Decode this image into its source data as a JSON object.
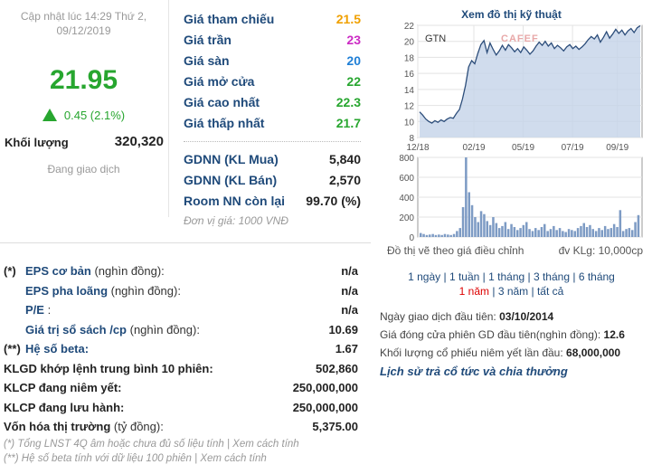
{
  "quote": {
    "update_time_line1": "Cập nhật lúc 14:29 Thứ 2,",
    "update_time_line2": "09/12/2019",
    "price": "21.95",
    "change": "0.45 (2.1%)",
    "volume_label": "Khối lượng",
    "volume_value": "320,320",
    "status": "Đang giao dịch",
    "up_color": "#27a62f"
  },
  "price_table": {
    "rows": [
      {
        "label": "Giá tham chiếu",
        "value": "21.5",
        "color": "#f0a000"
      },
      {
        "label": "Giá trần",
        "value": "23",
        "color": "#cc2bc4"
      },
      {
        "label": "Giá sàn",
        "value": "20",
        "color": "#1f7fd6"
      },
      {
        "label": "Giá mở cửa",
        "value": "22",
        "color": "#27a62f"
      },
      {
        "label": "Giá cao nhất",
        "value": "22.3",
        "color": "#27a62f"
      },
      {
        "label": "Giá thấp nhất",
        "value": "21.7",
        "color": "#27a62f"
      }
    ],
    "foreign": [
      {
        "label": "GDNN (KL Mua)",
        "value": "5,840"
      },
      {
        "label": "GDNN (KL Bán)",
        "value": "2,570"
      },
      {
        "label": "Room NN còn lại",
        "value": "99.70 (%)"
      }
    ],
    "unit_note": "Đơn vị giá: 1000 VNĐ"
  },
  "fundamentals": {
    "rows": [
      {
        "mark": "(*)",
        "label": "EPS cơ bản",
        "suffix": " (nghìn đồng):",
        "value": "n/a",
        "indent": 24,
        "style": "mixed"
      },
      {
        "mark": "",
        "label": "EPS pha loãng",
        "suffix": " (nghìn đồng):",
        "value": "n/a",
        "indent": 24,
        "style": "mixed"
      },
      {
        "mark": "",
        "label": "P/E",
        "suffix": " :",
        "value": "n/a",
        "indent": 24,
        "style": "mixed"
      },
      {
        "mark": "",
        "label": "Giá trị sổ sách /cp",
        "suffix": " (nghìn đồng):",
        "value": "10.69",
        "indent": 24,
        "style": "mixed"
      },
      {
        "mark": "(**)",
        "label": "Hệ số beta:",
        "suffix": "",
        "value": "1.67",
        "indent": 24,
        "style": "mixed"
      },
      {
        "mark": "",
        "label": "KLGD khớp lệnh trung bình 10 phiên:",
        "suffix": "",
        "value": "502,860",
        "indent": 0,
        "style": "bold"
      },
      {
        "mark": "",
        "label": "KLCP đang niêm yết:",
        "suffix": "",
        "value": "250,000,000",
        "indent": 0,
        "style": "bold"
      },
      {
        "mark": "",
        "label": "KLCP đang lưu hành:",
        "suffix": "",
        "value": "250,000,000",
        "indent": 0,
        "style": "bold"
      },
      {
        "mark": "",
        "label": "Vốn hóa thị trường",
        "suffix": " (tỷ đồng):",
        "value": "5,375.00",
        "indent": 0,
        "style": "bold"
      }
    ],
    "footnote1": "(*) Tổng LNST 4Q âm hoặc chưa đủ số liệu tính | Xem cách tính",
    "footnote2": "(**) Hệ số beta tính với dữ liệu 100 phiên | Xem cách tính"
  },
  "chart": {
    "title": "Xem đồ thị kỹ thuật",
    "ticker": "GTN",
    "logo_text": "CAFEF",
    "note_left": "Đồ thị vẽ theo giá điều chỉnh",
    "note_right": "đv KLg: 10,000cp",
    "ranges_line1": [
      "1 ngày",
      "1 tuần",
      "1 tháng",
      "3 tháng",
      "6 tháng"
    ],
    "ranges_line2": [
      "1 năm",
      "3 năm",
      "tất cả"
    ],
    "active_range": "1 năm",
    "line_color": "#2c4d7a",
    "fill_color": "#c4d3e8",
    "volume_color": "#7d9bc4"
  },
  "chart_data": {
    "type": "area",
    "title": "",
    "price_series": {
      "x_ticks": [
        "12/18",
        "02/19",
        "05/19",
        "07/19",
        "09/19"
      ],
      "y_ticks": [
        8,
        10,
        12,
        14,
        16,
        18,
        20,
        22
      ],
      "ylim": [
        8,
        22
      ],
      "values": [
        11.2,
        10.8,
        10.3,
        10.0,
        9.8,
        10.1,
        9.9,
        10.2,
        10.0,
        10.3,
        10.5,
        10.4,
        11.0,
        11.5,
        12.8,
        14.5,
        16.8,
        17.6,
        17.2,
        18.5,
        19.6,
        20.1,
        18.6,
        19.8,
        19.0,
        18.3,
        18.8,
        19.5,
        18.9,
        19.6,
        19.2,
        18.7,
        19.1,
        18.6,
        19.3,
        18.9,
        18.4,
        18.8,
        19.4,
        19.9,
        19.5,
        20.0,
        19.4,
        19.8,
        19.1,
        19.5,
        19.2,
        18.8,
        19.3,
        19.6,
        19.1,
        19.4,
        19.0,
        19.3,
        19.7,
        20.2,
        20.6,
        20.3,
        20.8,
        19.9,
        20.5,
        21.2,
        20.4,
        20.9,
        21.5,
        21.0,
        21.4,
        20.8,
        21.3,
        21.6,
        21.1,
        21.7,
        21.95
      ]
    },
    "volume_series": {
      "y_ticks": [
        0,
        200,
        400,
        600,
        800
      ],
      "ylim": [
        0,
        800
      ],
      "values": [
        40,
        30,
        20,
        25,
        30,
        20,
        25,
        20,
        30,
        25,
        20,
        30,
        60,
        90,
        300,
        800,
        450,
        320,
        200,
        150,
        260,
        230,
        160,
        120,
        200,
        140,
        90,
        110,
        150,
        80,
        130,
        100,
        70,
        90,
        120,
        150,
        80,
        60,
        90,
        70,
        100,
        130,
        60,
        80,
        110,
        70,
        90,
        60,
        50,
        80,
        70,
        60,
        90,
        110,
        140,
        100,
        120,
        80,
        60,
        90,
        70,
        110,
        80,
        90,
        130,
        100,
        270,
        60,
        80,
        90,
        70,
        150,
        220
      ]
    }
  },
  "info": {
    "first_trade_label": "Ngày giao dịch đầu tiên:",
    "first_trade_value": "03/10/2014",
    "first_close_label": "Giá đóng cửa phiên GD đầu tiên(nghìn đồng):",
    "first_close_value": "12.6",
    "first_volume_label": "Khối lượng cổ phiếu niêm yết lần đầu:",
    "first_volume_value": "68,000,000",
    "dividend_link": "Lịch sử trả cổ tức và chia thưởng"
  }
}
